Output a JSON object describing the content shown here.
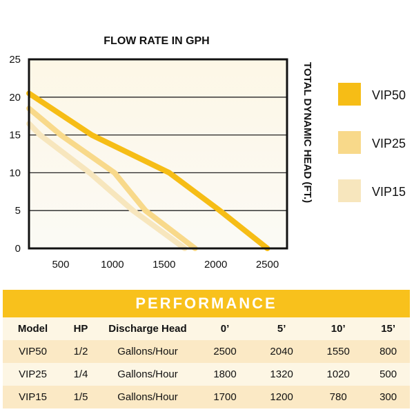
{
  "chart_data": {
    "type": "line",
    "title": "FLOW RATE IN GPH",
    "xlabel": "FLOW RATE IN GPH",
    "ylabel": "TOTAL DYNAMIC HEAD (FT.)",
    "x_ticks": [
      500,
      1000,
      1500,
      2000,
      2500
    ],
    "y_ticks": [
      0,
      5,
      10,
      15,
      20,
      25
    ],
    "xlim": [
      193,
      2690
    ],
    "ylim": [
      0,
      25
    ],
    "grid": true,
    "legend_position": "right",
    "series": [
      {
        "name": "VIP50",
        "color": "#f6bd16",
        "points": [
          [
            193,
            20.5
          ],
          [
            800,
            15
          ],
          [
            1550,
            10
          ],
          [
            2040,
            5
          ],
          [
            2500,
            0
          ]
        ]
      },
      {
        "name": "VIP25",
        "color": "#f8d98a",
        "points": [
          [
            193,
            18.5
          ],
          [
            500,
            15
          ],
          [
            1020,
            10
          ],
          [
            1320,
            5
          ],
          [
            1800,
            0
          ]
        ]
      },
      {
        "name": "VIP15",
        "color": "#f7e6bd",
        "points": [
          [
            193,
            16.5
          ],
          [
            300,
            15
          ],
          [
            780,
            10
          ],
          [
            1200,
            5
          ],
          [
            1700,
            0
          ]
        ]
      }
    ]
  },
  "performance": {
    "title": "PERFORMANCE",
    "columns": [
      "Model",
      "HP",
      "Discharge Head",
      "0’",
      "5’",
      "10’",
      "15’"
    ],
    "rows": [
      [
        "VIP50",
        "1/2",
        "Gallons/Hour",
        "2500",
        "2040",
        "1550",
        "800"
      ],
      [
        "VIP25",
        "1/4",
        "Gallons/Hour",
        "1800",
        "1320",
        "1020",
        "500"
      ],
      [
        "VIP15",
        "1/5",
        "Gallons/Hour",
        "1700",
        "1200",
        "780",
        "300"
      ]
    ]
  }
}
